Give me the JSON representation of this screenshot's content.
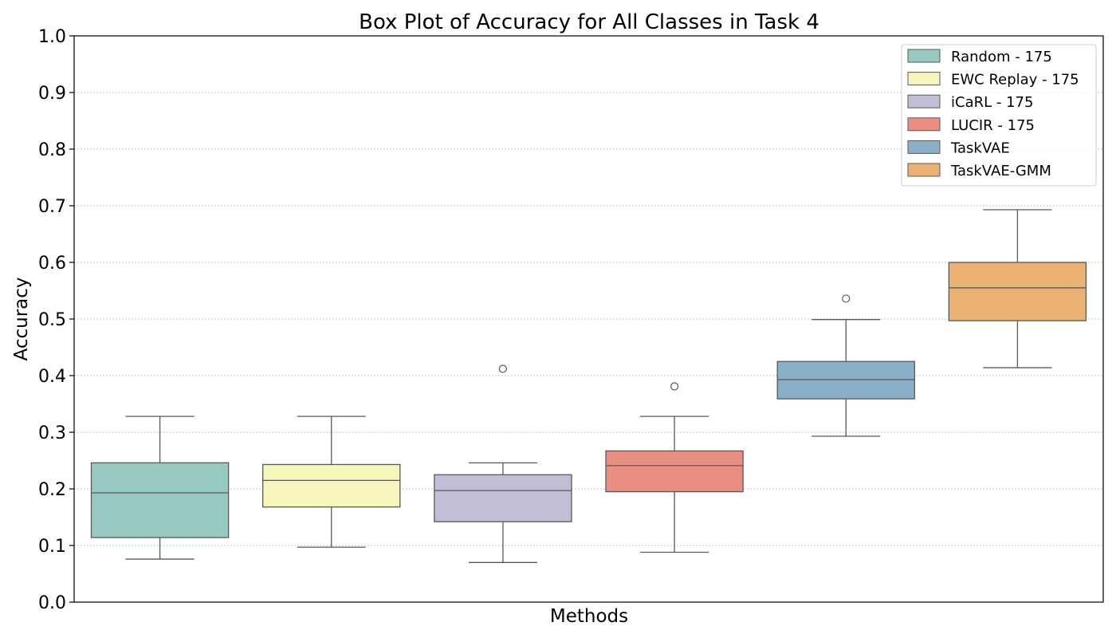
{
  "chart_data": {
    "type": "box",
    "title": "Box Plot of Accuracy for All Classes in Task 4",
    "xlabel": "Methods",
    "ylabel": "Accuracy",
    "ylim": [
      0.0,
      1.0
    ],
    "yticks": [
      "0.0",
      "0.1",
      "0.2",
      "0.3",
      "0.4",
      "0.5",
      "0.6",
      "0.7",
      "0.8",
      "0.9",
      "1.0"
    ],
    "grid": "horizontal dotted",
    "legend_position": "top-right",
    "series": [
      {
        "name": "Random - 175",
        "color": "#96cac1",
        "whisker_low": 0.076,
        "q1": 0.114,
        "median": 0.193,
        "q3": 0.246,
        "whisker_high": 0.328,
        "outliers": []
      },
      {
        "name": "EWC Replay - 175",
        "color": "#f6f6bc",
        "whisker_low": 0.097,
        "q1": 0.168,
        "median": 0.215,
        "q3": 0.243,
        "whisker_high": 0.328,
        "outliers": []
      },
      {
        "name": "iCaRL - 175",
        "color": "#c1bed6",
        "whisker_low": 0.07,
        "q1": 0.142,
        "median": 0.197,
        "q3": 0.225,
        "whisker_high": 0.246,
        "outliers": [
          0.412
        ]
      },
      {
        "name": "LUCIR - 175",
        "color": "#ea8e83",
        "whisker_low": 0.088,
        "q1": 0.195,
        "median": 0.241,
        "q3": 0.267,
        "whisker_high": 0.328,
        "outliers": [
          0.381
        ]
      },
      {
        "name": "TaskVAE",
        "color": "#8aafc9",
        "whisker_low": 0.293,
        "q1": 0.359,
        "median": 0.393,
        "q3": 0.425,
        "whisker_high": 0.499,
        "outliers": [
          0.536
        ]
      },
      {
        "name": "TaskVAE-GMM",
        "color": "#ebb172",
        "whisker_low": 0.414,
        "q1": 0.497,
        "median": 0.555,
        "q3": 0.6,
        "whisker_high": 0.693,
        "outliers": []
      }
    ]
  }
}
